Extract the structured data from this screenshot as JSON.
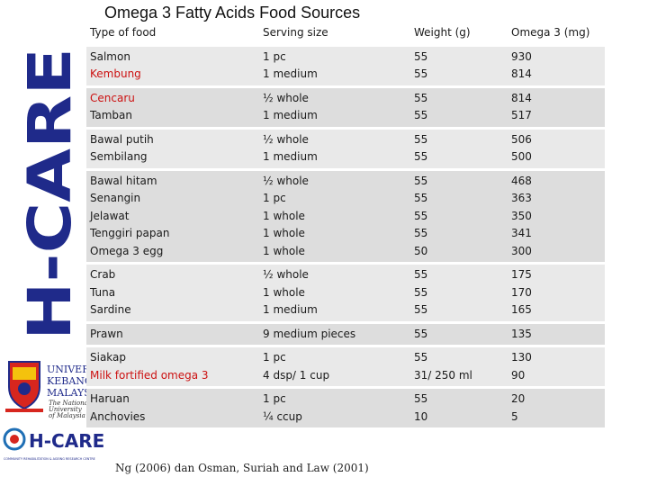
{
  "title": "Omega 3 Fatty Acids Food Sources",
  "brand_vertical": "H-CARE",
  "logos": {
    "ukm_text_1": "UNIVERSITI",
    "ukm_text_2": "KEBANGSAAN",
    "ukm_text_3": "MALAYSIA",
    "ukm_tagline_1": "The National",
    "ukm_tagline_2": "University",
    "ukm_tagline_3": "of Malaysia",
    "hcare_logo_text": "H-CARE",
    "hcare_caption": "COMMUNITY REHABILITATION & AGEING RESEARCH CENTRE"
  },
  "table": {
    "headers": [
      "Type of food",
      "Serving size",
      "Weight (g)",
      "Omega 3 (mg)"
    ],
    "rows": [
      {
        "food": [
          "Salmon",
          "Kembung"
        ],
        "red": [
          false,
          true
        ],
        "serving": [
          "1 pc",
          "1 medium"
        ],
        "weight": [
          "55",
          "55"
        ],
        "omega": [
          "930",
          "814"
        ]
      },
      {
        "food": [
          "Cencaru",
          "Tamban"
        ],
        "red": [
          true,
          false
        ],
        "serving": [
          "½ whole",
          "1 medium"
        ],
        "weight": [
          "55",
          "55"
        ],
        "omega": [
          "814",
          "517"
        ]
      },
      {
        "food": [
          "Bawal putih",
          "Sembilang"
        ],
        "red": [
          false,
          false
        ],
        "serving": [
          "½ whole",
          "1 medium"
        ],
        "weight": [
          "55",
          "55"
        ],
        "omega": [
          "506",
          "500"
        ]
      },
      {
        "food": [
          "Bawal hitam",
          "Senangin",
          "Jelawat",
          "Tenggiri papan",
          "Omega 3 egg"
        ],
        "red": [
          false,
          false,
          false,
          false,
          false
        ],
        "serving": [
          "½ whole",
          "1 pc",
          "1 whole",
          "1 whole",
          "1 whole"
        ],
        "weight": [
          "55",
          "55",
          "55",
          "55",
          "50"
        ],
        "omega": [
          "468",
          "363",
          "350",
          "341",
          "300"
        ]
      },
      {
        "food": [
          "Crab",
          "Tuna",
          "Sardine"
        ],
        "red": [
          false,
          false,
          false
        ],
        "serving": [
          "½ whole",
          "1 whole",
          "1 medium"
        ],
        "weight": [
          "55",
          "55",
          "55"
        ],
        "omega": [
          "175",
          "170",
          "165"
        ]
      },
      {
        "food": [
          "Prawn"
        ],
        "red": [
          false
        ],
        "serving": [
          "9 medium pieces"
        ],
        "weight": [
          "55"
        ],
        "omega": [
          "135"
        ]
      },
      {
        "food": [
          "Siakap",
          "Milk fortified omega 3"
        ],
        "red": [
          false,
          true
        ],
        "serving": [
          "1 pc",
          "4 dsp/ 1 cup"
        ],
        "weight": [
          "55",
          "31/ 250 ml"
        ],
        "omega": [
          "130",
          "90"
        ]
      },
      {
        "food": [
          "Haruan",
          "Anchovies"
        ],
        "red": [
          false,
          false
        ],
        "serving": [
          "1 pc",
          "¼ ccup"
        ],
        "weight": [
          "55",
          "10"
        ],
        "omega": [
          "20",
          "5"
        ]
      }
    ]
  },
  "citation": "Ng (2006) dan Osman, Suriah and Law (2001)",
  "colors": {
    "brand_blue": "#1f2a8a",
    "red_text": "#cc1111",
    "row_odd": "#e9e9e9",
    "row_even": "#dddddd"
  }
}
